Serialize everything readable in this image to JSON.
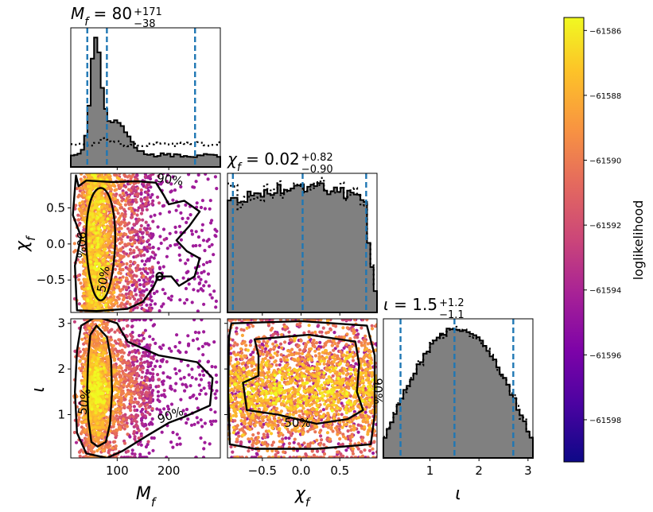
{
  "chart_data": {
    "type": "scatter",
    "parameters": [
      {
        "key": "Mf",
        "label": "M_f",
        "label_main": "M",
        "label_sub": "f",
        "range": [
          10,
          300
        ],
        "ticks": [
          100,
          200
        ],
        "tick_labels": [
          "100",
          "200"
        ],
        "title": {
          "prefix": "M",
          "sub": "f",
          "value": " = 80",
          "upper": "+171",
          "lower": "−38"
        },
        "quantiles": [
          42,
          80,
          251
        ]
      },
      {
        "key": "chi",
        "label": "χ_f",
        "label_main": "χ",
        "label_sub": "f",
        "range": [
          -0.95,
          0.98
        ],
        "ticks": [
          -0.5,
          0.0,
          0.5
        ],
        "tick_labels": [
          "−0.5",
          "0.0",
          "0.5"
        ],
        "title": {
          "prefix": "χ",
          "sub": "f",
          "value": " = 0.02",
          "upper": "+0.82",
          "lower": "−0.90"
        },
        "quantiles": [
          -0.88,
          0.02,
          0.84
        ]
      },
      {
        "key": "iota",
        "label": "ι",
        "label_main": "ι",
        "label_sub": "",
        "range": [
          0.05,
          3.1
        ],
        "ticks": [
          1,
          2,
          3
        ],
        "tick_labels": [
          "1",
          "2",
          "3"
        ],
        "title": {
          "prefix": "ι",
          "sub": "",
          "value": " = 1.5",
          "upper": "+1.2",
          "lower": "−1.1"
        },
        "quantiles": [
          0.4,
          1.5,
          2.7
        ]
      }
    ],
    "contour_labels": {
      "inner": "50%",
      "outer": "90%"
    },
    "colorbar": {
      "label": "loglikelihood",
      "range": [
        -61599.3,
        -61585.6
      ],
      "ticks": [
        -61586,
        -61588,
        -61590,
        -61592,
        -61594,
        -61596,
        -61598
      ],
      "tick_labels": [
        "−61586",
        "−61588",
        "−61590",
        "−61592",
        "−61594",
        "−61596",
        "−61598"
      ],
      "colormap": "plasma"
    },
    "colors": {
      "histogram_fill": "#808080",
      "quantile_line": "#1f77b4",
      "contour": "#000000"
    },
    "grid": false
  }
}
